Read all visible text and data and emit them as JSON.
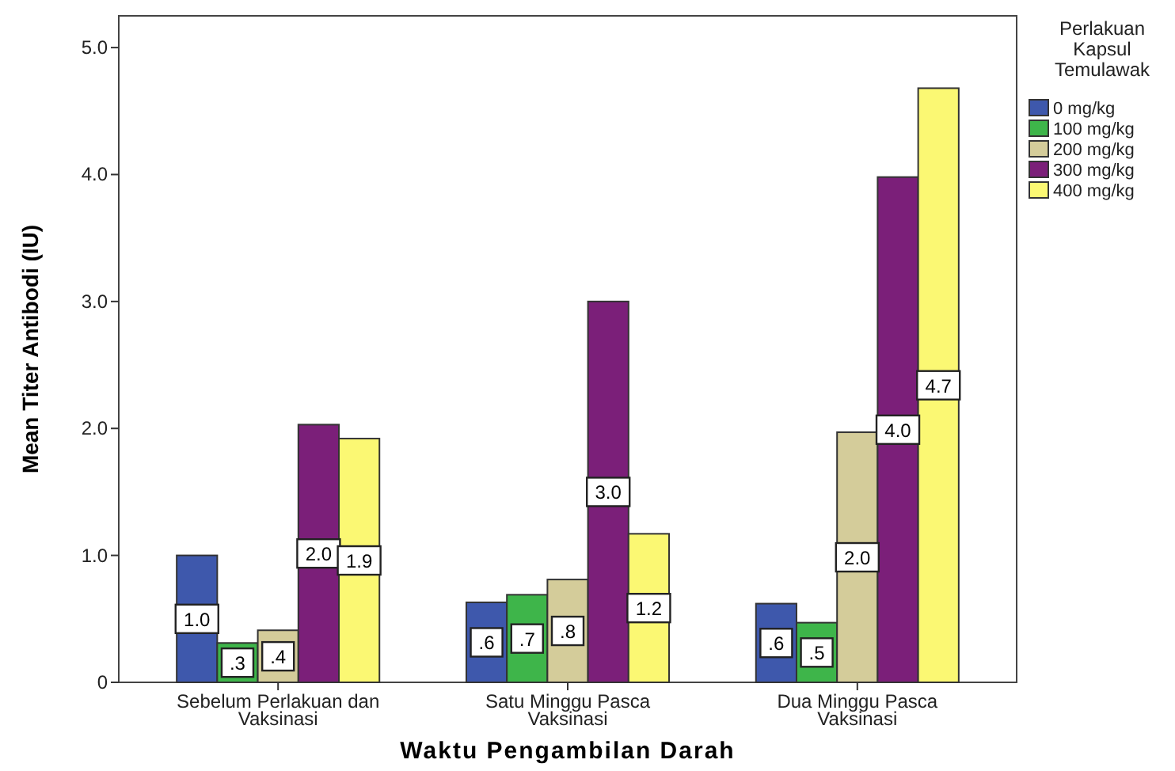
{
  "chart_data": {
    "type": "bar",
    "xlabel": "Waktu Pengambilan Darah",
    "ylabel": "Mean Titer Antibodi (IU)",
    "legend_title": "Perlakuan Kapsul Temulawak",
    "categories": [
      "Sebelum Perlakuan dan Vaksinasi",
      "Satu Minggu Pasca Vaksinasi",
      "Dua Minggu Pasca Vaksinasi"
    ],
    "series": [
      {
        "name": "0 mg/kg",
        "color": "#3e58ac",
        "values": [
          1.0,
          0.63,
          0.62
        ],
        "value_labels": [
          "1.0",
          ".6",
          ".6"
        ]
      },
      {
        "name": "100 mg/kg",
        "color": "#3eb54a",
        "values": [
          0.31,
          0.69,
          0.47
        ],
        "value_labels": [
          ".3",
          ".7",
          ".5"
        ]
      },
      {
        "name": "200 mg/kg",
        "color": "#d4cc9a",
        "values": [
          0.41,
          0.81,
          1.97
        ],
        "value_labels": [
          ".4",
          ".8",
          "2.0"
        ]
      },
      {
        "name": "300 mg/kg",
        "color": "#7b1f79",
        "values": [
          2.03,
          3.0,
          3.98
        ],
        "value_labels": [
          "2.0",
          "3.0",
          "4.0"
        ]
      },
      {
        "name": "400 mg/kg",
        "color": "#fbf873",
        "values": [
          1.92,
          1.17,
          4.68
        ],
        "value_labels": [
          "1.9",
          "1.2",
          "4.7"
        ]
      }
    ],
    "ylim": [
      0,
      5.25
    ],
    "yticks": [
      0,
      {
        "value": 1,
        "label": "1.0"
      },
      {
        "value": 2,
        "label": "2.0"
      },
      {
        "value": 3,
        "label": "3.0"
      },
      {
        "value": 4,
        "label": "4.0"
      },
      {
        "value": 5,
        "label": "5.0"
      }
    ],
    "grid": false,
    "legend": "top right"
  }
}
